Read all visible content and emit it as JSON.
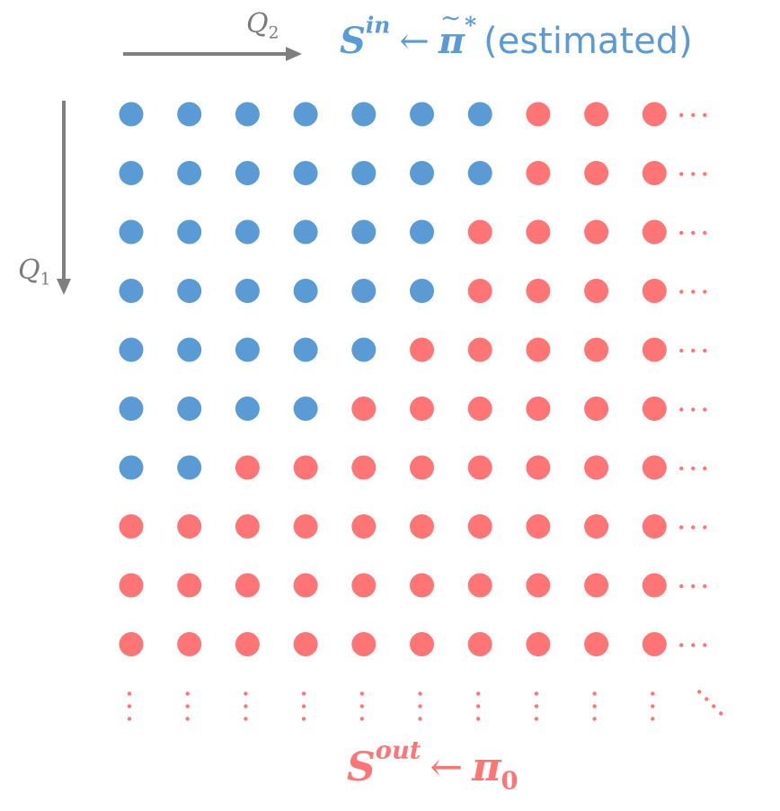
{
  "axes": {
    "q2": {
      "base": "Q",
      "sub": "2"
    },
    "q1": {
      "base": "Q",
      "sub": "1"
    }
  },
  "labels": {
    "s_in": {
      "base": "S",
      "sup": "in",
      "arrow": "←",
      "pi": "π",
      "pi_sup": "*",
      "note": "(estimated)"
    },
    "s_out": {
      "base": "S",
      "sup": "out",
      "arrow": "←",
      "pi": "π",
      "pi_sub": "0"
    }
  },
  "colors": {
    "in": "#5b9bd5",
    "out": "#ff7575",
    "axis": "#7f7f7f"
  },
  "grid": {
    "rows": 10,
    "cols": 10,
    "in_counts_per_row": [
      7,
      7,
      6,
      6,
      5,
      4,
      2,
      0,
      0,
      0
    ]
  }
}
